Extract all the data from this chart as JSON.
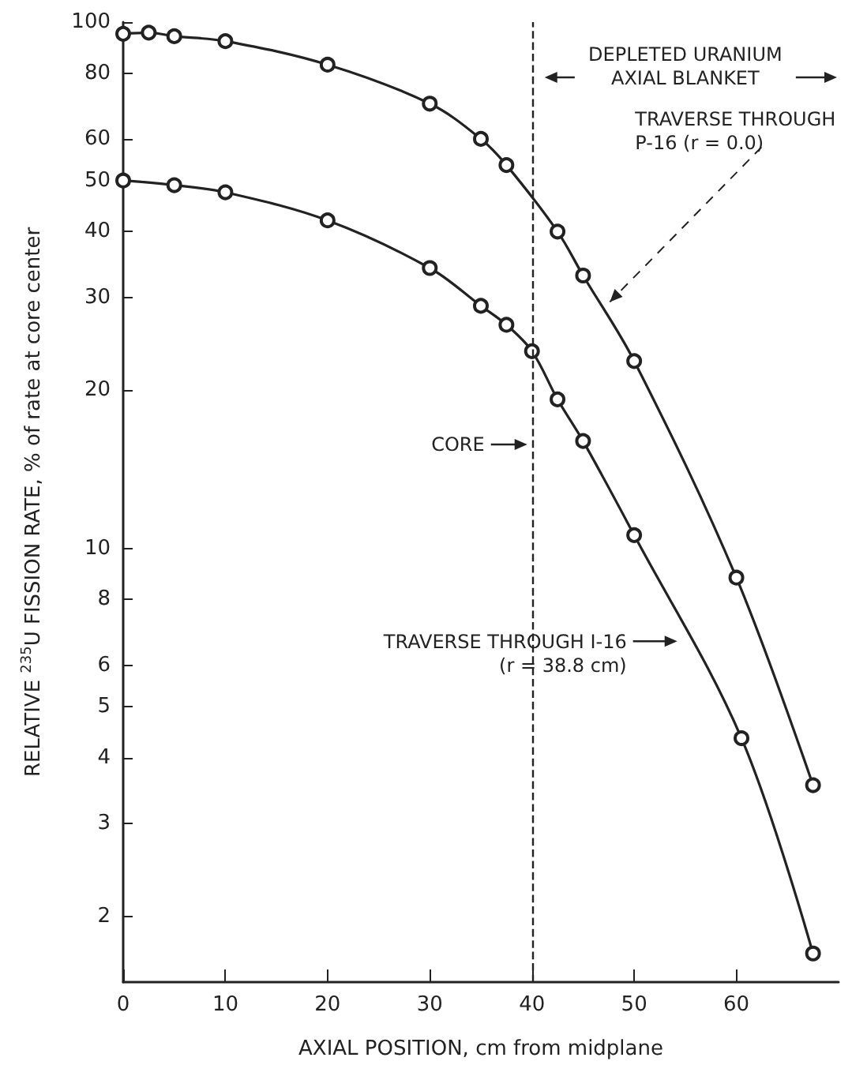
{
  "chart_data": {
    "type": "line",
    "xlabel": "AXIAL POSITION, cm from midplane",
    "ylabel": "RELATIVE $^{235}$U FISSION RATE, % of rate at core center",
    "series": [
      {
        "color": "#222222",
        "x": [
          0,
          2.5,
          5,
          10,
          20,
          30,
          35,
          37.5,
          42.5,
          45,
          50,
          60,
          67.5
        ],
        "values": [
          95,
          95.5,
          94,
          92,
          83,
          70,
          60,
          53.5,
          40,
          33,
          22.7,
          8.8,
          3.55
        ]
      },
      {
        "color": "#222222",
        "x": [
          0,
          5,
          10,
          20,
          30,
          35,
          37.5,
          40,
          42.5,
          45,
          50,
          60.5,
          67.5
        ],
        "values": [
          50,
          49,
          47.5,
          42,
          34.1,
          28.9,
          26.6,
          23.7,
          19.2,
          16,
          10.6,
          4.36,
          1.7
        ]
      }
    ],
    "xlim": [
      0,
      70
    ],
    "xticks": [
      0,
      10,
      20,
      30,
      40,
      50,
      60
    ],
    "ylim": [
      1.5,
      100
    ],
    "yticks": [
      2,
      3,
      4,
      5,
      6,
      8,
      10,
      20,
      30,
      40,
      50,
      60,
      80,
      100
    ],
    "log": "y",
    "grid": false,
    "marker": "circle",
    "line_style": "solid",
    "ref_lines": [
      {
        "axis": "x",
        "value": 40,
        "line_style": "dashed"
      }
    ],
    "annotations": [
      "DEPLETED URANIUM\nAXIAL BLANKET",
      "CORE",
      {
        "text": "TRAVERSE THROUGH\nP-16 (r = 0.0)",
        "x": 47,
        "y": 29
      },
      "TRAVERSE THROUGH I-16\n(r = 38.8 cm)"
    ]
  }
}
